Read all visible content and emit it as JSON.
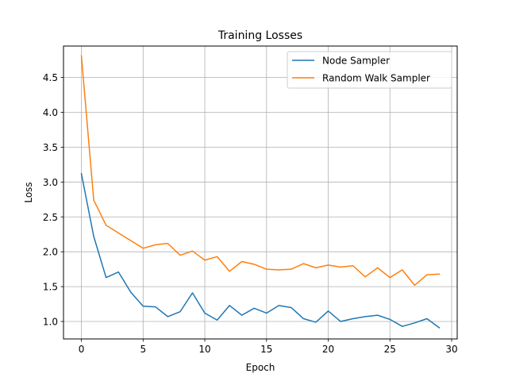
{
  "chart_data": {
    "type": "line",
    "title": "Training Losses",
    "xlabel": "Epoch",
    "ylabel": "Loss",
    "xlim": [
      -1.45,
      30.45
    ],
    "ylim": [
      0.75,
      4.95
    ],
    "grid": true,
    "legend_position": "top-right",
    "x_ticks": [
      0,
      5,
      10,
      15,
      20,
      25,
      30
    ],
    "x_tick_labels": [
      "0",
      "5",
      "10",
      "15",
      "20",
      "25",
      "30"
    ],
    "y_ticks": [
      1.0,
      1.5,
      2.0,
      2.5,
      3.0,
      3.5,
      4.0,
      4.5
    ],
    "y_tick_labels": [
      "1.0",
      "1.5",
      "2.0",
      "2.5",
      "3.0",
      "3.5",
      "4.0",
      "4.5"
    ],
    "x": [
      0,
      1,
      2,
      3,
      4,
      5,
      6,
      7,
      8,
      9,
      10,
      11,
      12,
      13,
      14,
      15,
      16,
      17,
      18,
      19,
      20,
      21,
      22,
      23,
      24,
      25,
      26,
      27,
      28,
      29
    ],
    "series": [
      {
        "name": "Node Sampler",
        "color": "#1f77b4",
        "values": [
          3.12,
          2.22,
          1.63,
          1.71,
          1.42,
          1.22,
          1.21,
          1.07,
          1.14,
          1.41,
          1.12,
          1.02,
          1.23,
          1.09,
          1.19,
          1.12,
          1.23,
          1.2,
          1.04,
          0.99,
          1.15,
          1.0,
          1.04,
          1.07,
          1.09,
          1.03,
          0.93,
          0.98,
          1.04,
          0.91
        ]
      },
      {
        "name": "Random Walk Sampler",
        "color": "#ff7f0e",
        "values": [
          4.81,
          2.74,
          2.38,
          2.27,
          2.16,
          2.05,
          2.1,
          2.12,
          1.95,
          2.01,
          1.88,
          1.93,
          1.72,
          1.86,
          1.82,
          1.75,
          1.74,
          1.75,
          1.83,
          1.77,
          1.81,
          1.78,
          1.8,
          1.64,
          1.77,
          1.63,
          1.74,
          1.52,
          1.67,
          1.68
        ]
      }
    ]
  }
}
